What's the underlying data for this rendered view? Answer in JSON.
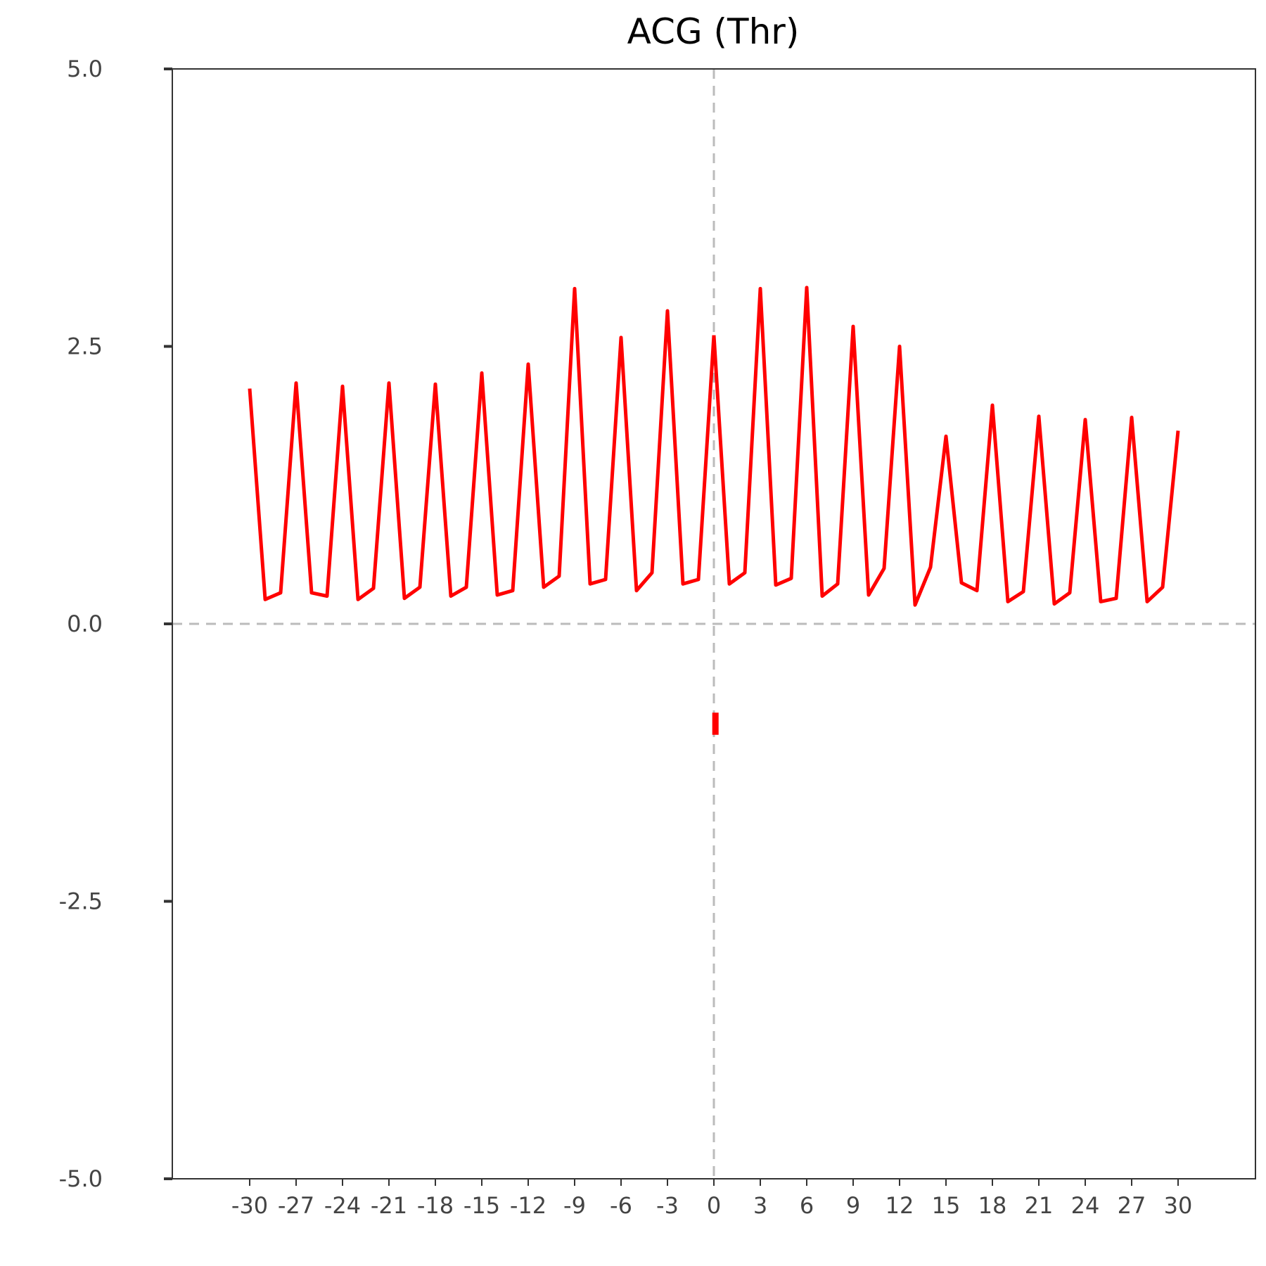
{
  "chart_data": {
    "type": "line",
    "title": "ACG (Thr)",
    "xlabel": "",
    "ylabel": "",
    "xlim": [
      -35,
      35
    ],
    "ylim": [
      -5,
      5
    ],
    "xticks": [
      -30,
      -27,
      -24,
      -21,
      -18,
      -15,
      -12,
      -9,
      -6,
      -3,
      0,
      3,
      6,
      9,
      12,
      15,
      18,
      21,
      24,
      27,
      30
    ],
    "xtick_labels": [
      "-30",
      "-27",
      "-24",
      "-21",
      "-18",
      "-15",
      "-12",
      "-9",
      "-6",
      "-3",
      "0",
      "3",
      "6",
      "9",
      "12",
      "15",
      "18",
      "21",
      "24",
      "27",
      "30"
    ],
    "yticks": [
      -5,
      -2.5,
      0,
      2.5,
      5
    ],
    "ytick_labels": [
      "-5.0",
      "-2.5",
      "0.0",
      "2.5",
      "5.0"
    ],
    "grid": false,
    "reference_lines": {
      "x": 0,
      "y": 0,
      "style": "dashed",
      "color": "#bbbbbb"
    },
    "series": [
      {
        "color": "#ff0000",
        "x": [
          -30,
          -29,
          -28,
          -27,
          -26,
          -25,
          -24,
          -23,
          -22,
          -21,
          -20,
          -19,
          -18,
          -17,
          -16,
          -15,
          -14,
          -13,
          -12,
          -11,
          -10,
          -9,
          -8,
          -7,
          -6,
          -5,
          -4,
          -3,
          -2,
          -1,
          0
        ],
        "y": [
          2.12,
          0.22,
          0.28,
          2.17,
          0.28,
          0.25,
          2.14,
          0.22,
          0.32,
          2.17,
          0.23,
          0.33,
          2.16,
          0.25,
          0.33,
          2.26,
          0.26,
          0.3,
          2.34,
          0.33,
          0.43,
          3.02,
          0.36,
          0.4,
          2.58,
          0.3,
          0.46,
          2.82,
          0.36,
          0.4,
          2.6
        ]
      },
      {
        "color": "#ff0000",
        "x": [
          0,
          1,
          2,
          3,
          4,
          5,
          6,
          7,
          8,
          9,
          10,
          11,
          12,
          13,
          14,
          15,
          16,
          17,
          18,
          19,
          20,
          21,
          22,
          23,
          24,
          25,
          26,
          27,
          28,
          29,
          30
        ],
        "y": [
          2.6,
          0.36,
          0.46,
          3.02,
          0.35,
          0.41,
          3.03,
          0.25,
          0.36,
          2.68,
          0.26,
          0.5,
          2.5,
          0.17,
          0.51,
          1.69,
          0.37,
          0.3,
          1.97,
          0.2,
          0.29,
          1.87,
          0.18,
          0.28,
          1.84,
          0.2,
          0.23,
          1.86,
          0.2,
          0.33,
          1.74
        ]
      }
    ],
    "annotations": [
      {
        "x": 0.1,
        "y_start": -0.8,
        "y_end": -1.0,
        "color": "#ff0000",
        "kind": "short-vertical-bar"
      }
    ]
  }
}
